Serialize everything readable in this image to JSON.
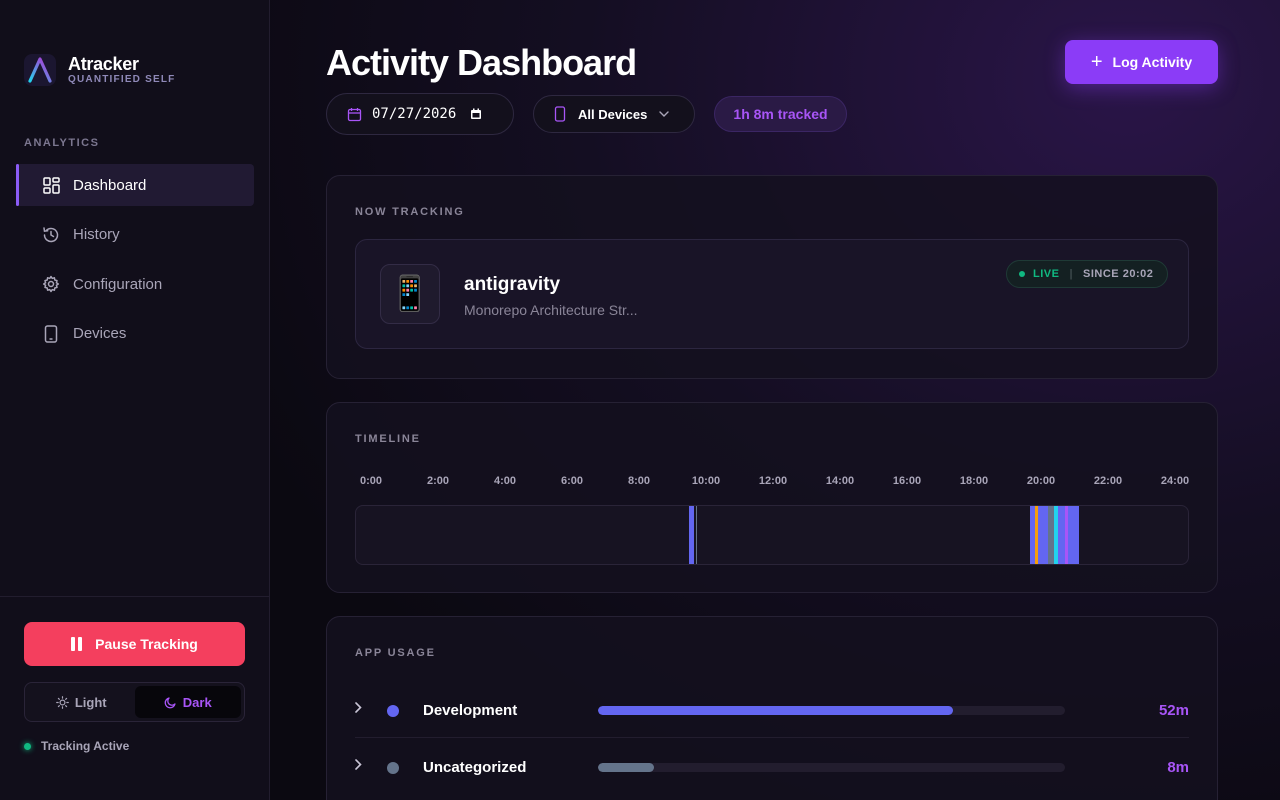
{
  "brand": {
    "name": "Atracker",
    "subtitle": "QUANTIFIED SELF"
  },
  "sidebar": {
    "section_label": "ANALYTICS",
    "items": [
      {
        "label": "Dashboard",
        "icon": "dashboard-icon",
        "active": true
      },
      {
        "label": "History",
        "icon": "history-icon",
        "active": false
      },
      {
        "label": "Configuration",
        "icon": "gear-icon",
        "active": false
      },
      {
        "label": "Devices",
        "icon": "device-icon",
        "active": false
      }
    ],
    "pause_label": "Pause Tracking",
    "theme": {
      "light": "Light",
      "dark": "Dark",
      "selected": "Dark"
    },
    "status": "Tracking Active"
  },
  "header": {
    "title": "Activity Dashboard",
    "log_button": "Log Activity",
    "date_value": "07/27/2026",
    "device_filter": "All Devices",
    "tracked": "1h 8m tracked"
  },
  "now_tracking": {
    "title": "NOW TRACKING",
    "app_name": "antigravity",
    "app_subtitle": "Monorepo Architecture Str...",
    "live_label": "LIVE",
    "since": "SINCE 20:02",
    "icon_glyph": "📱"
  },
  "timeline": {
    "title": "TIMELINE",
    "hours": [
      "0:00",
      "2:00",
      "4:00",
      "6:00",
      "8:00",
      "10:00",
      "12:00",
      "14:00",
      "16:00",
      "18:00",
      "20:00",
      "22:00",
      "24:00"
    ],
    "segments": [
      {
        "start_hour": 9.58,
        "end_hour": 9.73,
        "color": "#6366f1"
      },
      {
        "start_hour": 9.77,
        "end_hour": 9.8,
        "color": "#64748b"
      },
      {
        "start_hour": 19.4,
        "end_hour": 19.55,
        "color": "#6366f1"
      },
      {
        "start_hour": 19.55,
        "end_hour": 19.63,
        "color": "#f59e0b"
      },
      {
        "start_hour": 19.63,
        "end_hour": 19.7,
        "color": "#6366f1"
      },
      {
        "start_hour": 19.7,
        "end_hour": 19.92,
        "color": "#6366f1"
      },
      {
        "start_hour": 19.92,
        "end_hour": 20.08,
        "color": "#64748b"
      },
      {
        "start_hour": 20.08,
        "end_hour": 20.2,
        "color": "#22d3ee"
      },
      {
        "start_hour": 20.2,
        "end_hour": 20.4,
        "color": "#6366f1"
      },
      {
        "start_hour": 20.4,
        "end_hour": 20.48,
        "color": "#a855f7"
      },
      {
        "start_hour": 20.48,
        "end_hour": 20.8,
        "color": "#6366f1"
      }
    ]
  },
  "app_usage": {
    "title": "APP USAGE",
    "rows": [
      {
        "name": "Development",
        "duration": "52m",
        "fraction": 0.76,
        "color": "#6366f1"
      },
      {
        "name": "Uncategorized",
        "duration": "8m",
        "fraction": 0.12,
        "color": "#64748b"
      }
    ]
  }
}
